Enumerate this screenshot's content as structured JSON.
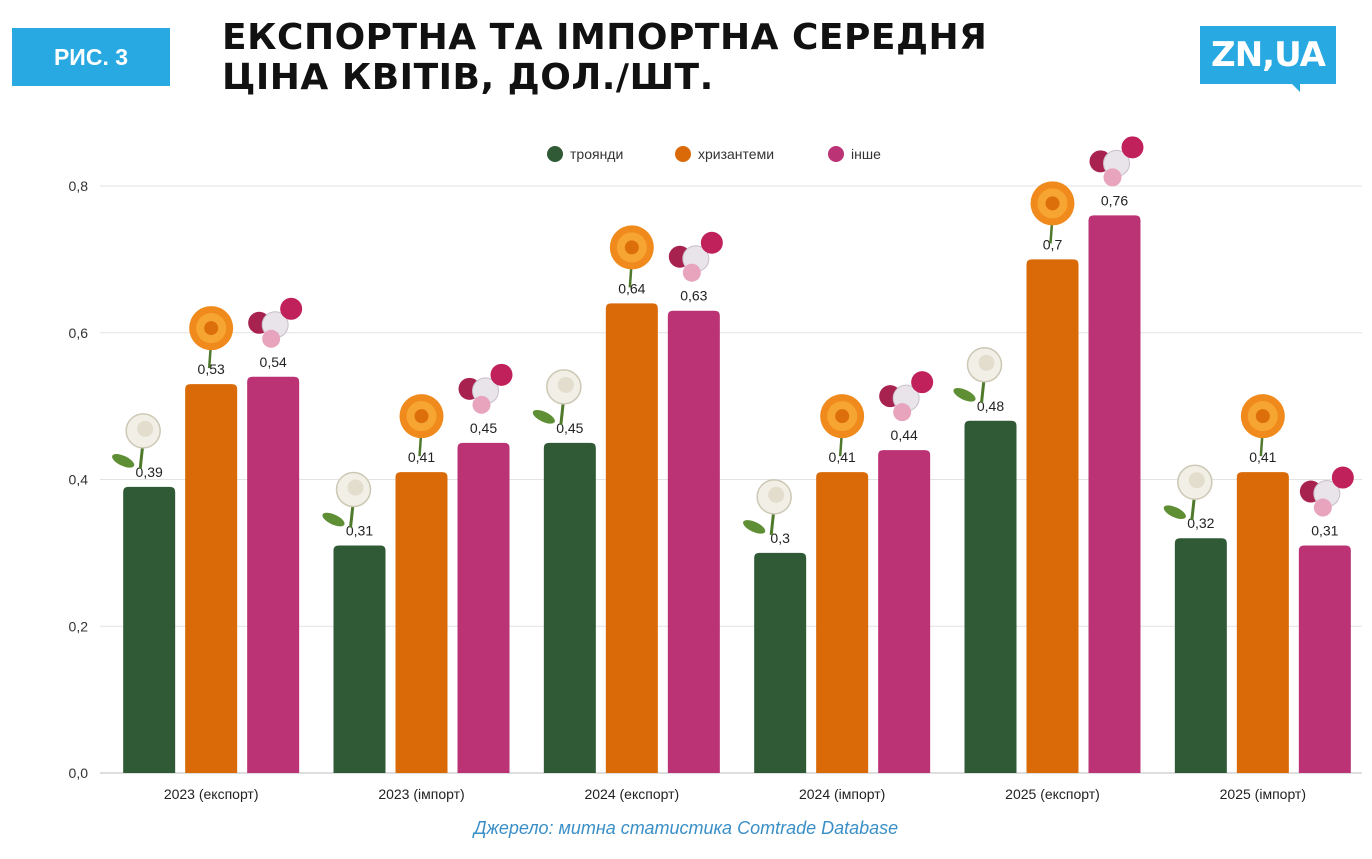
{
  "header": {
    "figure_label": "РИС. 3",
    "title_line1": "ЕКСПОРТНА ТА ІМПОРТНА СЕРЕДНЯ",
    "title_line2": "ЦІНА КВІТІВ, ДОЛ./ШТ.",
    "logo_text": "ZN,UA"
  },
  "source": "Джерело: митна статистика Comtrade Database",
  "chart_data": {
    "type": "bar",
    "categories": [
      "2023 (експорт)",
      "2023 (імпорт)",
      "2024 (експорт)",
      "2024 (імпорт)",
      "2025 (експорт)",
      "2025 (імпорт)"
    ],
    "series": [
      {
        "name": "троянди",
        "color": "#2f5a35",
        "icon": "rose-icon",
        "values": [
          0.39,
          0.31,
          0.45,
          0.3,
          0.48,
          0.32
        ],
        "labels": [
          "0,39",
          "0,31",
          "0,45",
          "0,3",
          "0,48",
          "0,32"
        ]
      },
      {
        "name": "хризантеми",
        "color": "#d96a07",
        "icon": "chrysanthemum-icon",
        "values": [
          0.53,
          0.41,
          0.64,
          0.41,
          0.7,
          0.41
        ],
        "labels": [
          "0,53",
          "0,41",
          "0,64",
          "0,41",
          "0,7",
          "0,41"
        ]
      },
      {
        "name": "інше",
        "color": "#bb3375",
        "icon": "bouquet-icon",
        "values": [
          0.54,
          0.45,
          0.63,
          0.44,
          0.76,
          0.31
        ],
        "labels": [
          "0,54",
          "0,45",
          "0,63",
          "0,44",
          "0,76",
          "0,31"
        ]
      }
    ],
    "yticks": [
      0,
      0.2,
      0.4,
      0.6,
      0.8
    ],
    "ytick_labels": [
      "0,0",
      "0,2",
      "0,4",
      "0,6",
      "0,8"
    ],
    "ylim": [
      0,
      0.8
    ],
    "grid": true,
    "legend": "top-center",
    "xlabel": "",
    "ylabel": ""
  }
}
